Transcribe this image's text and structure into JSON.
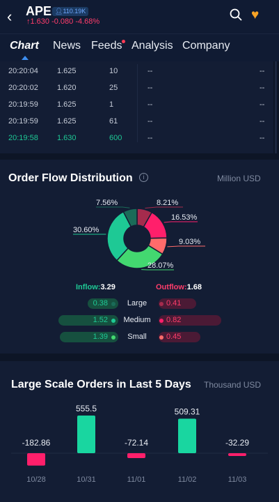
{
  "header": {
    "back_icon": "back-chevron-icon",
    "ticker": "APE",
    "holders": "110.19K",
    "quote": "↑1.630 -0.080 -4.68%",
    "search_icon": "search-icon",
    "favorite_icon": "heart-icon"
  },
  "tabs": {
    "chart": "Chart",
    "news": "News",
    "feeds": "Feeds",
    "analysis": "Analysis",
    "company": "Company"
  },
  "trades": [
    {
      "time": "20:20:04",
      "price": "1.625",
      "volume": "10",
      "d1": "--",
      "d2": "--"
    },
    {
      "time": "20:20:02",
      "price": "1.620",
      "volume": "25",
      "d1": "--",
      "d2": "--"
    },
    {
      "time": "20:19:59",
      "price": "1.625",
      "volume": "1",
      "d1": "--",
      "d2": "--"
    },
    {
      "time": "20:19:59",
      "price": "1.625",
      "volume": "61",
      "d1": "--",
      "d2": "--"
    },
    {
      "time": "20:19:58",
      "price": "1.630",
      "volume": "600",
      "d1": "--",
      "d2": "--"
    }
  ],
  "order_flow": {
    "title": "Order Flow Distribution",
    "unit": "Million USD",
    "info_icon": "info-icon",
    "inflow_label": "Inflow:",
    "inflow_value": "3.29",
    "outflow_label": "Outflow:",
    "outflow_value": "1.68",
    "rows": [
      {
        "label": "Large",
        "in": "0.38",
        "out": "0.41",
        "in_color": "#1a6b58",
        "out_color": "#a52b4d"
      },
      {
        "label": "Medium",
        "in": "1.52",
        "out": "0.82",
        "in_color": "#1ec995",
        "out_color": "#ff1f6b"
      },
      {
        "label": "Small",
        "in": "1.39",
        "out": "0.45",
        "in_color": "#43d870",
        "out_color": "#ff6b6b"
      }
    ]
  },
  "chart_data": [
    {
      "type": "pie",
      "slices": [
        {
          "label": "8.21%",
          "value": 8.21,
          "color": "#a52b4d"
        },
        {
          "label": "16.53%",
          "value": 16.53,
          "color": "#ff1f6b"
        },
        {
          "label": "9.03%",
          "value": 9.03,
          "color": "#ff6b6b"
        },
        {
          "label": "28.07%",
          "value": 28.07,
          "color": "#43d870"
        },
        {
          "label": "30.60%",
          "value": 30.6,
          "color": "#1ec995"
        },
        {
          "label": "7.56%",
          "value": 7.56,
          "color": "#1a6b58"
        }
      ]
    },
    {
      "type": "bar",
      "title": "Large Scale Orders in Last 5 Days",
      "unit": "Thousand USD",
      "categories": [
        "10/28",
        "10/31",
        "11/01",
        "11/02",
        "11/03"
      ],
      "values": [
        -182.86,
        555.5,
        -72.14,
        509.31,
        -32.29
      ],
      "value_labels": [
        "-182.86",
        "555.5",
        "-72.14",
        "509.31",
        "-32.29"
      ],
      "positive_color": "#19d6a0",
      "negative_color": "#ff1f6b"
    }
  ]
}
